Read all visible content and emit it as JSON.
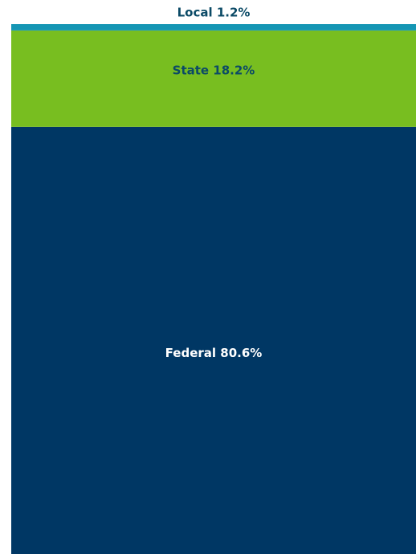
{
  "chart_data": {
    "type": "bar",
    "stacked": true,
    "ylim": [
      0,
      100
    ],
    "series": [
      {
        "color": "#003764",
        "label_color": "#ffffff",
        "values": [
          80.6
        ],
        "value_labels": [
          "Federal 80.6%"
        ]
      },
      {
        "color": "#78be20",
        "label_color": "#0b4a66",
        "values": [
          18.2
        ],
        "value_labels": [
          "State 18.2%"
        ]
      },
      {
        "color": "#1596b4",
        "label_color": "#0b4a66",
        "values": [
          1.2
        ],
        "value_labels": [
          "Local 1.2%"
        ]
      }
    ]
  }
}
